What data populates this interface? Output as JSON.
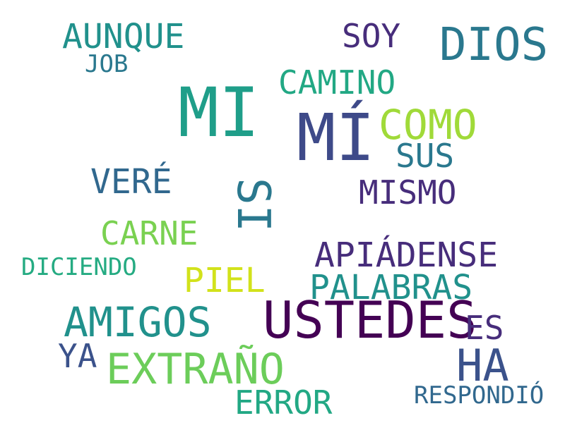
{
  "words": [
    {
      "text": "MI",
      "color": "#1f9e89"
    },
    {
      "text": "MÍ",
      "color": "#3e4a89"
    },
    {
      "text": "USTEDES",
      "color": "#440154"
    },
    {
      "text": "DIOS",
      "color": "#2a788e"
    },
    {
      "text": "SI",
      "color": "#2a788e"
    },
    {
      "text": "COMO",
      "color": "#a0da39"
    },
    {
      "text": "AMIGOS",
      "color": "#21918c"
    },
    {
      "text": "HA",
      "color": "#3b528b"
    },
    {
      "text": "EXTRAÑO",
      "color": "#6ccd5a"
    },
    {
      "text": "AUNQUE",
      "color": "#21918c"
    },
    {
      "text": "CAMINO",
      "color": "#22a884"
    },
    {
      "text": "SOY",
      "color": "#472d7b"
    },
    {
      "text": "APIÁDENSE",
      "color": "#472d7b"
    },
    {
      "text": "PALABRAS",
      "color": "#21918c"
    },
    {
      "text": "CARNE",
      "color": "#7ad151"
    },
    {
      "text": "VERÉ",
      "color": "#31688e"
    },
    {
      "text": "MISMO",
      "color": "#472d7b"
    },
    {
      "text": "SUS",
      "color": "#2a788e"
    },
    {
      "text": "PIEL",
      "color": "#d2e21b"
    },
    {
      "text": "ERROR",
      "color": "#22a884"
    },
    {
      "text": "ES",
      "color": "#472d7b"
    },
    {
      "text": "YA",
      "color": "#3b528b"
    },
    {
      "text": "DICIENDO",
      "color": "#25ab82"
    },
    {
      "text": "RESPONDIÓ",
      "color": "#31688e"
    },
    {
      "text": "JOB",
      "color": "#2a788e"
    }
  ]
}
